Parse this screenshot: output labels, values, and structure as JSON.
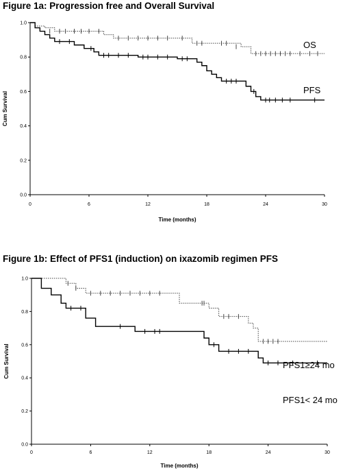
{
  "chart_data": [
    {
      "type": "line",
      "title": "Figure 1a: Progression free and Overall Survival",
      "xlabel": "Time (months)",
      "ylabel": "Cum Survival",
      "xlim": [
        0,
        30
      ],
      "ylim": [
        0,
        1.0
      ],
      "xticks": [
        "0",
        "6",
        "12",
        "18",
        "24",
        "30"
      ],
      "yticks": [
        "0.0",
        "0.2",
        "0.4",
        "0.6",
        "0.8",
        "1.0"
      ],
      "grid": false,
      "series": [
        {
          "name": "OS",
          "style": "dotted",
          "steps": [
            [
              0,
              1.0
            ],
            [
              0.5,
              0.98
            ],
            [
              1.5,
              0.97
            ],
            [
              2.5,
              0.95
            ],
            [
              7.5,
              0.93
            ],
            [
              8.5,
              0.91
            ],
            [
              16.5,
              0.88
            ],
            [
              21.5,
              0.86
            ],
            [
              22.5,
              0.82
            ],
            [
              30,
              0.82
            ]
          ],
          "censored": [
            [
              2,
              0.95
            ],
            [
              3,
              0.95
            ],
            [
              3.6,
              0.95
            ],
            [
              4.5,
              0.95
            ],
            [
              5.2,
              0.95
            ],
            [
              6,
              0.95
            ],
            [
              7,
              0.95
            ],
            [
              9,
              0.91
            ],
            [
              10,
              0.91
            ],
            [
              11,
              0.91
            ],
            [
              12,
              0.91
            ],
            [
              13,
              0.91
            ],
            [
              14,
              0.91
            ],
            [
              15.5,
              0.91
            ],
            [
              17,
              0.88
            ],
            [
              17.5,
              0.88
            ],
            [
              19.5,
              0.88
            ],
            [
              20,
              0.88
            ],
            [
              21,
              0.86
            ],
            [
              23,
              0.82
            ],
            [
              23.5,
              0.82
            ],
            [
              24,
              0.82
            ],
            [
              24.5,
              0.82
            ],
            [
              25,
              0.82
            ],
            [
              25.5,
              0.82
            ],
            [
              26,
              0.82
            ],
            [
              26.5,
              0.82
            ],
            [
              27.5,
              0.82
            ],
            [
              28.5,
              0.82
            ],
            [
              29.3,
              0.82
            ]
          ]
        },
        {
          "name": "PFS",
          "style": "solid",
          "steps": [
            [
              0,
              1.0
            ],
            [
              0.5,
              0.97
            ],
            [
              1,
              0.95
            ],
            [
              1.5,
              0.93
            ],
            [
              2,
              0.91
            ],
            [
              2.5,
              0.89
            ],
            [
              4.5,
              0.87
            ],
            [
              5.5,
              0.85
            ],
            [
              6.5,
              0.83
            ],
            [
              7,
              0.81
            ],
            [
              11,
              0.8
            ],
            [
              15,
              0.79
            ],
            [
              17,
              0.77
            ],
            [
              17.5,
              0.75
            ],
            [
              18,
              0.72
            ],
            [
              18.5,
              0.7
            ],
            [
              19,
              0.68
            ],
            [
              19.5,
              0.66
            ],
            [
              22,
              0.63
            ],
            [
              22.5,
              0.6
            ],
            [
              23,
              0.57
            ],
            [
              23.5,
              0.55
            ],
            [
              30,
              0.55
            ]
          ],
          "censored": [
            [
              3,
              0.89
            ],
            [
              4,
              0.89
            ],
            [
              6.2,
              0.85
            ],
            [
              7.5,
              0.81
            ],
            [
              8,
              0.81
            ],
            [
              9,
              0.81
            ],
            [
              10,
              0.81
            ],
            [
              11.5,
              0.8
            ],
            [
              12,
              0.8
            ],
            [
              13,
              0.8
            ],
            [
              14,
              0.8
            ],
            [
              15.5,
              0.79
            ],
            [
              16,
              0.79
            ],
            [
              20,
              0.66
            ],
            [
              20.5,
              0.66
            ],
            [
              21,
              0.66
            ],
            [
              22.8,
              0.6
            ],
            [
              24,
              0.55
            ],
            [
              24.4,
              0.55
            ],
            [
              25,
              0.55
            ],
            [
              25.7,
              0.55
            ],
            [
              26.5,
              0.55
            ],
            [
              29,
              0.55
            ]
          ]
        }
      ]
    },
    {
      "type": "line",
      "title": "Figure 1b: Effect of PFS1 (induction) on ixazomib regimen PFS",
      "xlabel": "Time (months)",
      "ylabel": "Cum Survival",
      "xlim": [
        0,
        30
      ],
      "ylim": [
        0,
        1.0
      ],
      "xticks": [
        "0",
        "6",
        "12",
        "18",
        "24",
        "30"
      ],
      "yticks": [
        "0.0",
        "0.2",
        "0.4",
        "0.6",
        "0.8",
        "1.0"
      ],
      "grid": false,
      "series": [
        {
          "name": "PFS1≥24 mo",
          "style": "dotted",
          "steps": [
            [
              0,
              1.0
            ],
            [
              3.5,
              0.97
            ],
            [
              4.5,
              0.94
            ],
            [
              5.5,
              0.91
            ],
            [
              15,
              0.85
            ],
            [
              18,
              0.82
            ],
            [
              19,
              0.77
            ],
            [
              22,
              0.73
            ],
            [
              22.5,
              0.7
            ],
            [
              23,
              0.62
            ],
            [
              30,
              0.62
            ]
          ],
          "censored": [
            [
              3.7,
              0.97
            ],
            [
              4.5,
              0.94
            ],
            [
              6,
              0.91
            ],
            [
              7,
              0.91
            ],
            [
              8,
              0.91
            ],
            [
              9,
              0.91
            ],
            [
              10,
              0.91
            ],
            [
              11,
              0.91
            ],
            [
              12,
              0.91
            ],
            [
              13,
              0.91
            ],
            [
              17.3,
              0.85
            ],
            [
              17.5,
              0.85
            ],
            [
              19.5,
              0.77
            ],
            [
              20,
              0.77
            ],
            [
              21,
              0.77
            ],
            [
              23.5,
              0.62
            ],
            [
              24,
              0.62
            ],
            [
              24.5,
              0.62
            ],
            [
              25,
              0.62
            ]
          ]
        },
        {
          "name": "PFS1< 24 mo",
          "style": "solid",
          "steps": [
            [
              0,
              1.0
            ],
            [
              1,
              0.94
            ],
            [
              2,
              0.9
            ],
            [
              3,
              0.85
            ],
            [
              3.5,
              0.82
            ],
            [
              5.5,
              0.76
            ],
            [
              6.5,
              0.71
            ],
            [
              10.5,
              0.68
            ],
            [
              17.5,
              0.64
            ],
            [
              18,
              0.6
            ],
            [
              19,
              0.56
            ],
            [
              23,
              0.52
            ],
            [
              23.5,
              0.49
            ],
            [
              30,
              0.49
            ]
          ],
          "censored": [
            [
              4,
              0.82
            ],
            [
              5,
              0.82
            ],
            [
              9,
              0.71
            ],
            [
              11.5,
              0.68
            ],
            [
              12.5,
              0.68
            ],
            [
              13,
              0.68
            ],
            [
              18.5,
              0.6
            ],
            [
              20,
              0.56
            ],
            [
              21,
              0.56
            ],
            [
              22,
              0.56
            ],
            [
              24,
              0.49
            ],
            [
              25,
              0.49
            ],
            [
              26.5,
              0.49
            ],
            [
              29,
              0.49
            ]
          ]
        }
      ]
    }
  ]
}
